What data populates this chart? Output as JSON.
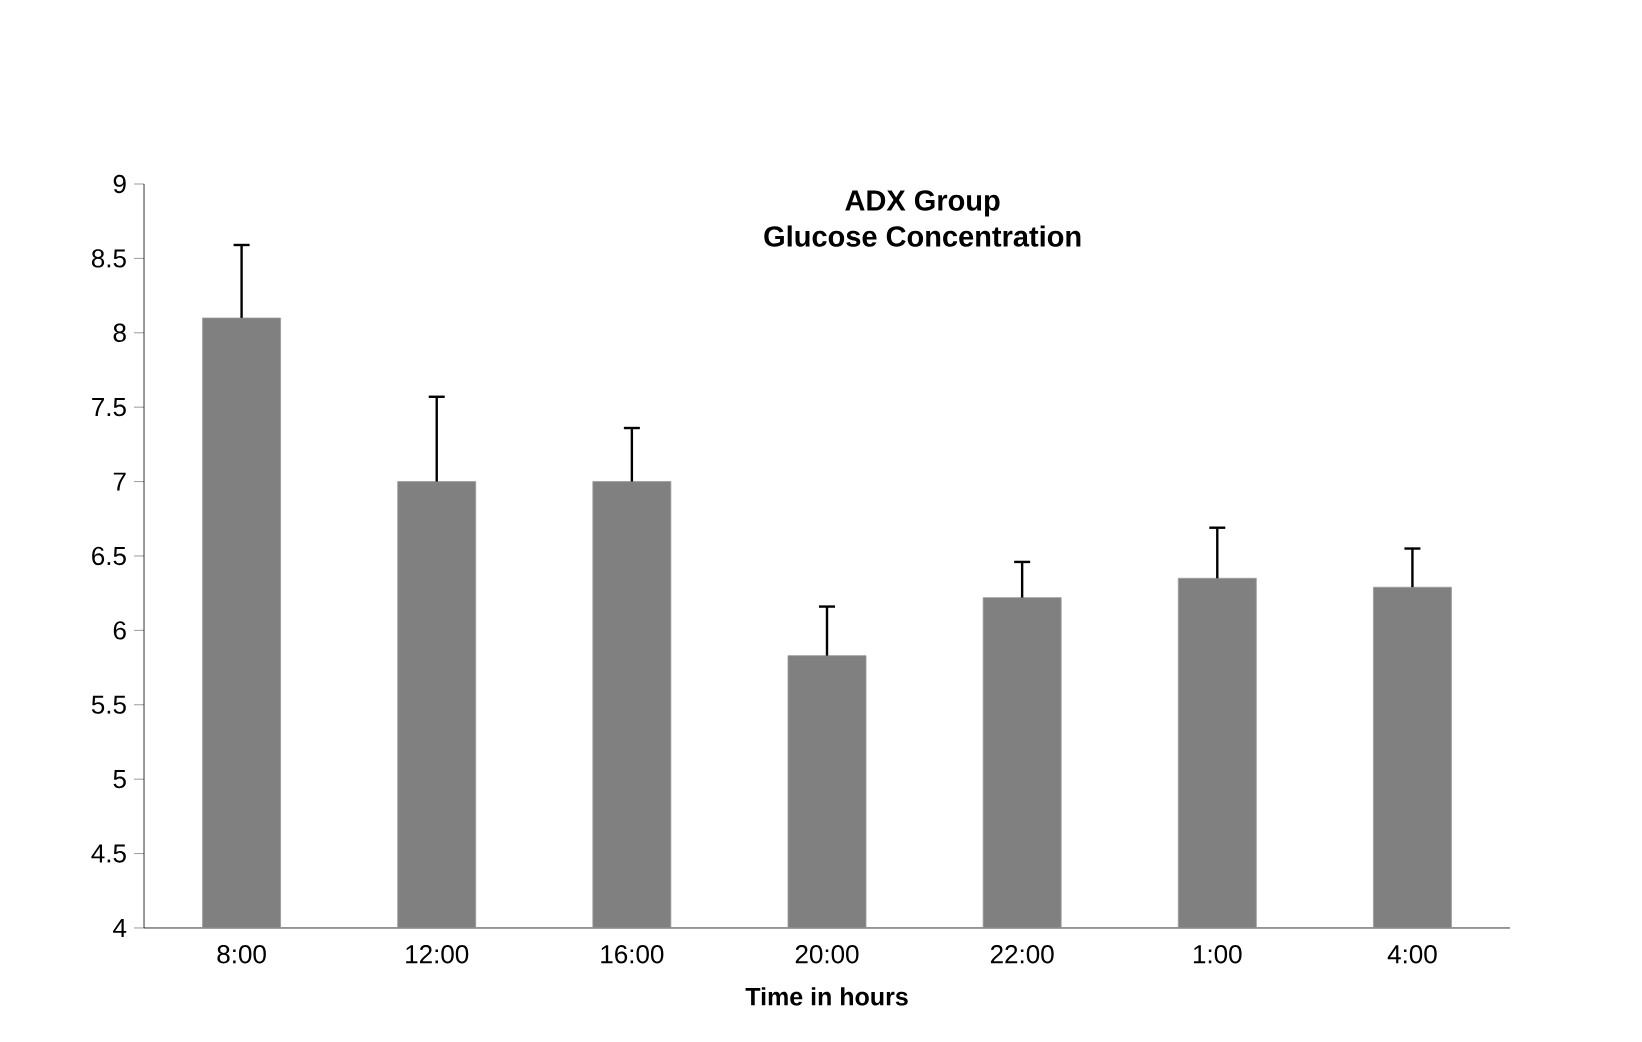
{
  "chart_data": {
    "type": "bar",
    "title": "ADX Group",
    "subtitle": "Glucose Concentration",
    "xlabel": "Time in hours",
    "categories": [
      "8:00",
      "12:00",
      "16:00",
      "20:00",
      "22:00",
      "1:00",
      "4:00"
    ],
    "values": [
      8.1,
      7.0,
      7.0,
      5.83,
      6.22,
      6.35,
      6.29
    ],
    "errors": [
      [
        8.1,
        8.59
      ],
      [
        7.0,
        7.57
      ],
      [
        7.0,
        7.36
      ],
      [
        5.83,
        6.16
      ],
      [
        6.22,
        6.46
      ],
      [
        6.35,
        6.69
      ],
      [
        6.29,
        6.55
      ]
    ],
    "color": "#808080",
    "ylim": [
      4,
      9
    ],
    "yticks": [
      4,
      4.5,
      5,
      5.5,
      6,
      6.5,
      7,
      7.5,
      8,
      8.5,
      9
    ],
    "grid": false
  }
}
